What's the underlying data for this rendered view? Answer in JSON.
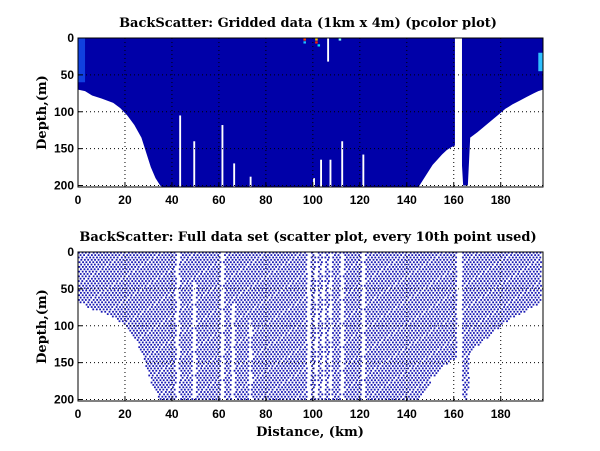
{
  "chart_data": [
    {
      "type": "heatmap",
      "title": "BackScatter: Gridded data (1km x 4m) (pcolor plot)",
      "xlabel": "",
      "ylabel": "Depth,(m)",
      "xlim": [
        0,
        198
      ],
      "ylim": [
        0,
        202
      ],
      "y_reversed": true,
      "xticks": [
        0,
        20,
        40,
        60,
        80,
        100,
        120,
        140,
        160,
        180
      ],
      "yticks": [
        0,
        50,
        100,
        150,
        200
      ],
      "grid": "dotted",
      "background_color": "#ffffff",
      "fill_color": "#0000a8",
      "bottom_profile": {
        "x": [
          0,
          3,
          6,
          10,
          15,
          18,
          21,
          24,
          27,
          29,
          31,
          33,
          35,
          36,
          40,
          80,
          120,
          145,
          147,
          149,
          151,
          153,
          155,
          157,
          159,
          161,
          163,
          164,
          166,
          167,
          170,
          173,
          176,
          179,
          182,
          185,
          188,
          191,
          194,
          196,
          198
        ],
        "depth": [
          70,
          72,
          78,
          82,
          88,
          95,
          105,
          118,
          135,
          155,
          175,
          190,
          200,
          202,
          202,
          202,
          202,
          202,
          192,
          182,
          172,
          165,
          158,
          152,
          148,
          145,
          145,
          200,
          200,
          135,
          128,
          120,
          112,
          104,
          96,
          90,
          85,
          80,
          75,
          72,
          70
        ]
      },
      "gaps": [
        {
          "x": 43.5,
          "from_depth": 105,
          "to_depth": 202
        },
        {
          "x": 49.5,
          "from_depth": 140,
          "to_depth": 202
        },
        {
          "x": 61.5,
          "from_depth": 118,
          "to_depth": 202
        },
        {
          "x": 66.5,
          "from_depth": 170,
          "to_depth": 202
        },
        {
          "x": 73.5,
          "from_depth": 188,
          "to_depth": 202
        },
        {
          "x": 100.5,
          "from_depth": 190,
          "to_depth": 202
        },
        {
          "x": 103.5,
          "from_depth": 165,
          "to_depth": 202
        },
        {
          "x": 107.5,
          "from_depth": 165,
          "to_depth": 202
        },
        {
          "x": 112.5,
          "from_depth": 140,
          "to_depth": 202
        },
        {
          "x": 121.5,
          "from_depth": 158,
          "to_depth": 202
        },
        {
          "x": 106.5,
          "from_depth": 0,
          "to_depth": 32
        },
        {
          "x": 162.0,
          "from_depth": 0,
          "to_depth": 202,
          "width": 3
        }
      ],
      "hot_cells": [
        {
          "x": 96.5,
          "depth": 2,
          "color": "#ff4000"
        },
        {
          "x": 96.5,
          "depth": 6,
          "color": "#20c0ff"
        },
        {
          "x": 101.5,
          "depth": 2,
          "color": "#ffd000"
        },
        {
          "x": 101.5,
          "depth": 6,
          "color": "#ff2000"
        },
        {
          "x": 102.5,
          "depth": 10,
          "color": "#00e0ff"
        },
        {
          "x": 111.5,
          "depth": 2,
          "color": "#80ffff"
        }
      ]
    },
    {
      "type": "scatter",
      "title": "BackScatter: Full data set (scatter plot, every 10th point used)",
      "xlabel": "Distance, (km)",
      "ylabel": "Depth,(m)",
      "xlim": [
        0,
        198
      ],
      "ylim": [
        0,
        202
      ],
      "y_reversed": true,
      "xticks": [
        0,
        20,
        40,
        60,
        80,
        100,
        120,
        140,
        160,
        180
      ],
      "yticks": [
        0,
        50,
        100,
        150,
        200
      ],
      "grid": "dotted",
      "point_color": "#1a1ab4",
      "point_spacing": {
        "x_km": 1.5,
        "depth_m": 3.2
      },
      "bottom_profile": {
        "x": [
          0,
          3,
          6,
          10,
          15,
          18,
          21,
          24,
          27,
          29,
          31,
          33,
          35,
          36,
          40,
          80,
          120,
          145,
          147,
          149,
          151,
          153,
          155,
          157,
          159,
          161,
          163,
          164,
          166,
          167,
          170,
          173,
          176,
          179,
          182,
          185,
          188,
          191,
          194,
          196,
          198
        ],
        "depth": [
          70,
          72,
          78,
          82,
          88,
          95,
          105,
          118,
          135,
          155,
          175,
          190,
          200,
          202,
          202,
          202,
          202,
          202,
          192,
          182,
          172,
          165,
          158,
          152,
          148,
          145,
          145,
          200,
          200,
          135,
          128,
          120,
          112,
          104,
          96,
          90,
          85,
          80,
          75,
          72,
          70
        ]
      },
      "gaps": [
        {
          "x": 42.5,
          "from_depth": 0,
          "to_depth": 202,
          "width": 1.5
        },
        {
          "x": 49.5,
          "from_depth": 40,
          "to_depth": 202,
          "width": 1.2
        },
        {
          "x": 61.5,
          "from_depth": 0,
          "to_depth": 202,
          "width": 1.2
        },
        {
          "x": 66.0,
          "from_depth": 70,
          "to_depth": 202,
          "width": 1.2
        },
        {
          "x": 73.5,
          "from_depth": 90,
          "to_depth": 202,
          "width": 1.0
        },
        {
          "x": 98.5,
          "from_depth": 0,
          "to_depth": 202,
          "width": 1.5
        },
        {
          "x": 101.5,
          "from_depth": 0,
          "to_depth": 202,
          "width": 1.0
        },
        {
          "x": 104.5,
          "from_depth": 0,
          "to_depth": 202,
          "width": 1.0
        },
        {
          "x": 107.5,
          "from_depth": 0,
          "to_depth": 202,
          "width": 1.0
        },
        {
          "x": 112.5,
          "from_depth": 0,
          "to_depth": 202,
          "width": 1.2
        },
        {
          "x": 121.5,
          "from_depth": 0,
          "to_depth": 202,
          "width": 1.2
        },
        {
          "x": 162.5,
          "from_depth": 0,
          "to_depth": 202,
          "width": 2.5
        }
      ]
    }
  ]
}
